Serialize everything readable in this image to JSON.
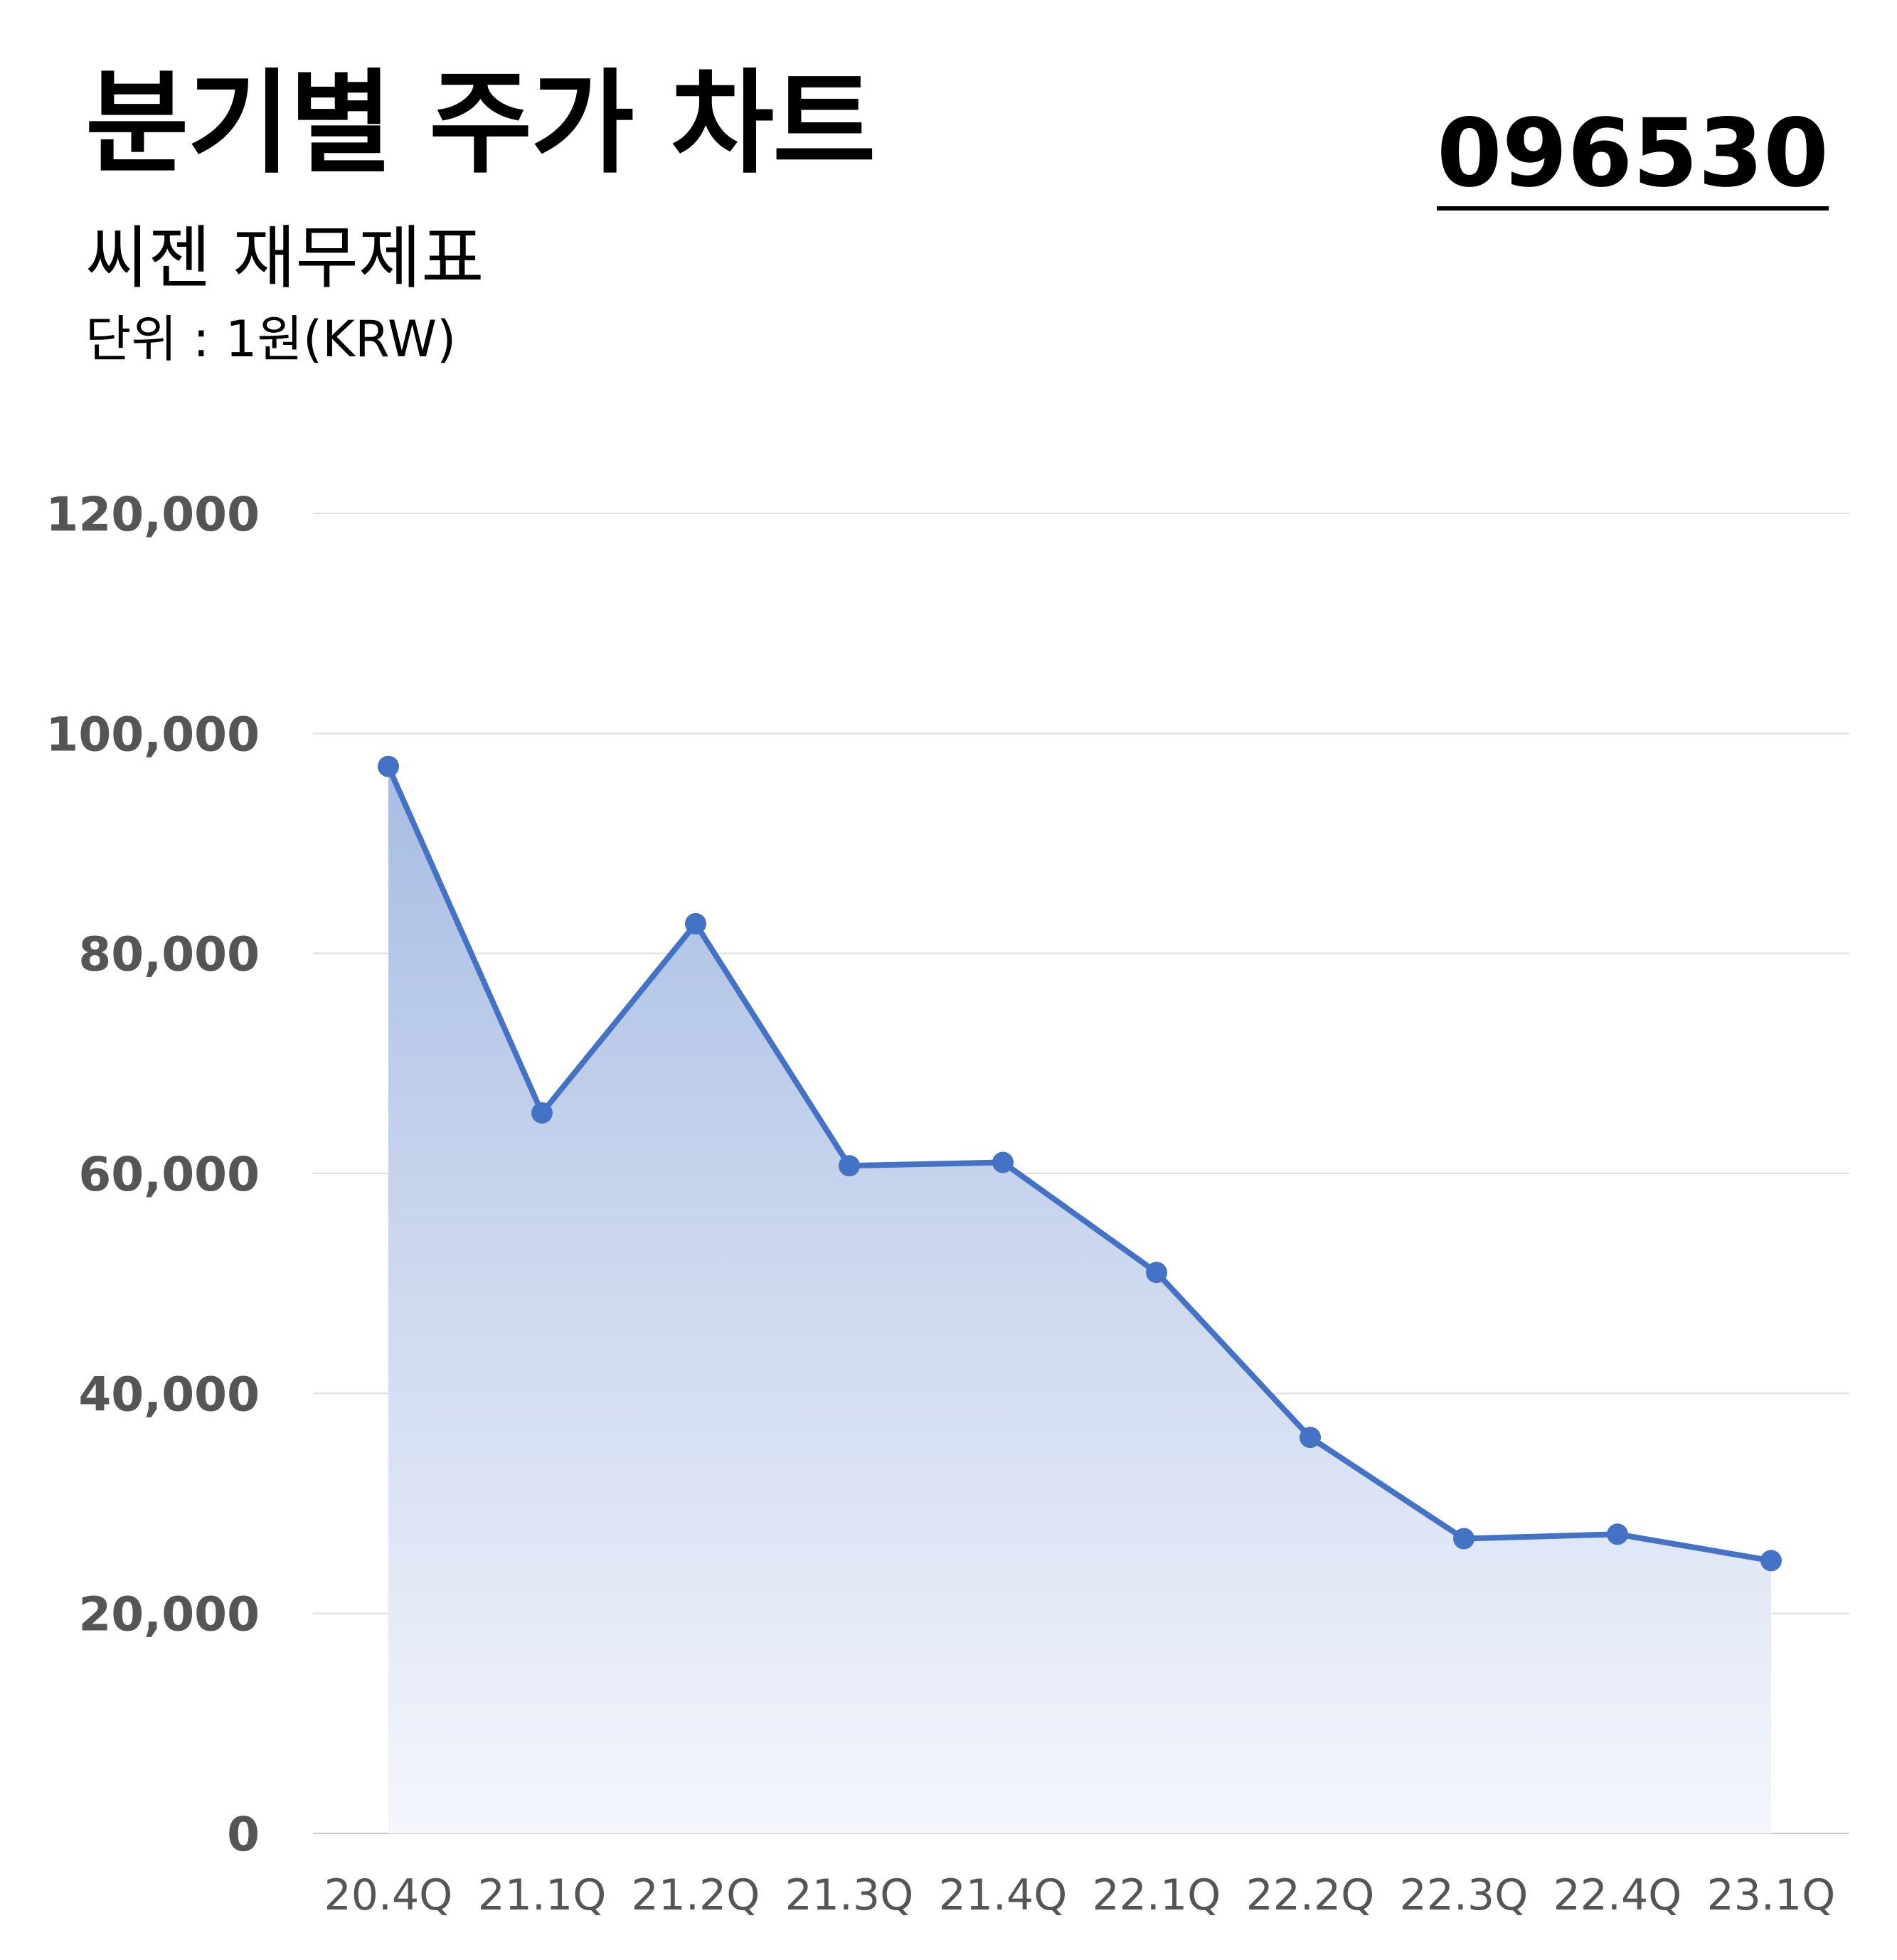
{
  "header": {
    "title": "분기별 주가 차트",
    "ticker": "096530",
    "subtitle": "씨젠 재무제표",
    "unit": "단위 : 1원(KRW)"
  },
  "colors": {
    "line": "#4472c4",
    "fill_top": "#a8bde3",
    "fill_bottom": "#f4f6fc",
    "grid": "#dddddd",
    "tick_label": "#555555"
  },
  "chart_data": {
    "type": "area",
    "categories": [
      "20.4Q",
      "21.1Q",
      "21.2Q",
      "21.3Q",
      "21.4Q",
      "22.1Q",
      "22.2Q",
      "22.3Q",
      "22.4Q",
      "23.1Q"
    ],
    "series": [
      {
        "values": [
          97000,
          65500,
          82700,
          60700,
          61000,
          51000,
          36000,
          26800,
          27200,
          24800
        ]
      }
    ],
    "y_ticks": [
      "0",
      "20,000",
      "40,000",
      "60,000",
      "80,000",
      "100,000",
      "120,000"
    ],
    "ylim": [
      0,
      120000
    ],
    "grid": true,
    "markers": true,
    "legend": "none"
  }
}
